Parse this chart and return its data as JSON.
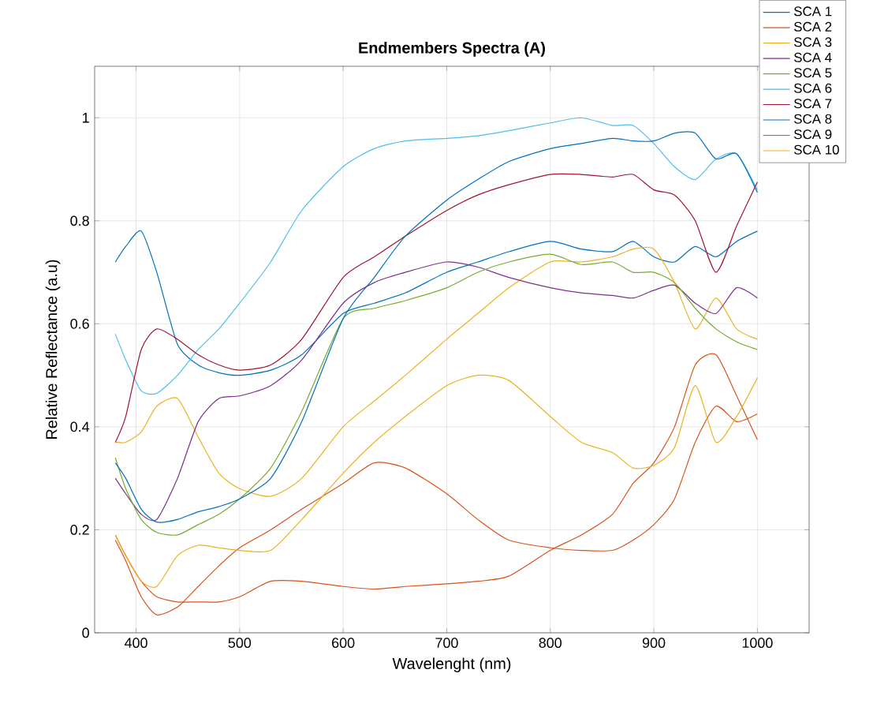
{
  "chart_data": {
    "type": "line",
    "title": "Endmembers Spectra (A)",
    "xlabel": "Wavelenght (nm)",
    "ylabel": "Relative Reflectance (a.u)",
    "x": [
      380,
      390,
      405,
      420,
      440,
      460,
      480,
      500,
      530,
      560,
      600,
      630,
      660,
      700,
      730,
      760,
      800,
      830,
      860,
      880,
      900,
      920,
      940,
      960,
      980,
      1000
    ],
    "series": [
      {
        "name": "SCA 1",
        "color": "#0072bd",
        "values": [
          0.72,
          0.75,
          0.78,
          0.7,
          0.56,
          0.52,
          0.505,
          0.5,
          0.51,
          0.54,
          0.62,
          0.64,
          0.66,
          0.7,
          0.72,
          0.74,
          0.76,
          0.745,
          0.74,
          0.76,
          0.73,
          0.72,
          0.75,
          0.73,
          0.76,
          0.78
        ]
      },
      {
        "name": "SCA 2",
        "color": "#d95319",
        "values": [
          0.18,
          0.14,
          0.07,
          0.035,
          0.05,
          0.09,
          0.13,
          0.165,
          0.2,
          0.24,
          0.29,
          0.33,
          0.32,
          0.27,
          0.22,
          0.18,
          0.165,
          0.16,
          0.16,
          0.18,
          0.21,
          0.26,
          0.37,
          0.44,
          0.41,
          0.425
        ]
      },
      {
        "name": "SCA 3",
        "color": "#edb120",
        "values": [
          0.37,
          0.37,
          0.39,
          0.44,
          0.455,
          0.38,
          0.31,
          0.28,
          0.265,
          0.3,
          0.4,
          0.45,
          0.5,
          0.57,
          0.62,
          0.67,
          0.72,
          0.72,
          0.73,
          0.745,
          0.745,
          0.68,
          0.59,
          0.65,
          0.59,
          0.57
        ]
      },
      {
        "name": "SCA 4",
        "color": "#7e2f8e",
        "values": [
          0.3,
          0.27,
          0.23,
          0.22,
          0.3,
          0.41,
          0.455,
          0.46,
          0.48,
          0.53,
          0.64,
          0.68,
          0.7,
          0.72,
          0.71,
          0.69,
          0.67,
          0.66,
          0.655,
          0.65,
          0.665,
          0.675,
          0.64,
          0.62,
          0.67,
          0.65
        ]
      },
      {
        "name": "SCA 5",
        "color": "#77ac30",
        "values": [
          0.34,
          0.28,
          0.22,
          0.195,
          0.19,
          0.21,
          0.23,
          0.26,
          0.32,
          0.43,
          0.61,
          0.63,
          0.645,
          0.67,
          0.7,
          0.72,
          0.735,
          0.715,
          0.72,
          0.7,
          0.7,
          0.68,
          0.63,
          0.59,
          0.565,
          0.55
        ]
      },
      {
        "name": "SCA 6",
        "color": "#4dbeee",
        "values": [
          0.58,
          0.53,
          0.47,
          0.465,
          0.5,
          0.55,
          0.59,
          0.64,
          0.72,
          0.82,
          0.905,
          0.94,
          0.955,
          0.96,
          0.965,
          0.975,
          0.99,
          1.0,
          0.985,
          0.985,
          0.95,
          0.905,
          0.88,
          0.92,
          0.93,
          0.86
        ]
      },
      {
        "name": "SCA 7",
        "color": "#a2142f",
        "values": [
          0.37,
          0.42,
          0.55,
          0.59,
          0.57,
          0.54,
          0.52,
          0.51,
          0.52,
          0.57,
          0.69,
          0.73,
          0.77,
          0.82,
          0.85,
          0.87,
          0.89,
          0.89,
          0.885,
          0.89,
          0.86,
          0.85,
          0.8,
          0.7,
          0.79,
          0.875
        ]
      },
      {
        "name": "SCA 8",
        "color": "#0072bd",
        "values": [
          0.33,
          0.3,
          0.24,
          0.215,
          0.22,
          0.235,
          0.245,
          0.26,
          0.3,
          0.41,
          0.61,
          0.69,
          0.77,
          0.84,
          0.88,
          0.915,
          0.94,
          0.95,
          0.96,
          0.955,
          0.955,
          0.97,
          0.97,
          0.92,
          0.93,
          0.855
        ]
      },
      {
        "name": "SCA 9",
        "color": "#d95319",
        "values": [
          0.19,
          0.15,
          0.1,
          0.07,
          0.06,
          0.06,
          0.06,
          0.07,
          0.1,
          0.1,
          0.09,
          0.085,
          0.09,
          0.095,
          0.1,
          0.11,
          0.16,
          0.19,
          0.23,
          0.29,
          0.33,
          0.4,
          0.52,
          0.54,
          0.46,
          0.375
        ]
      },
      {
        "name": "SCA 10",
        "color": "#edb120",
        "values": [
          0.19,
          0.15,
          0.1,
          0.09,
          0.15,
          0.17,
          0.165,
          0.16,
          0.16,
          0.22,
          0.31,
          0.37,
          0.42,
          0.48,
          0.5,
          0.49,
          0.42,
          0.37,
          0.35,
          0.32,
          0.325,
          0.36,
          0.48,
          0.37,
          0.42,
          0.495
        ]
      }
    ],
    "xlim": [
      360,
      1050
    ],
    "ylim": [
      0,
      1.1
    ],
    "xticks": [
      400,
      500,
      600,
      700,
      800,
      900,
      1000
    ],
    "yticks": [
      0,
      0.2,
      0.4,
      0.6,
      0.8,
      1
    ],
    "grid": true,
    "legend": "top right"
  }
}
